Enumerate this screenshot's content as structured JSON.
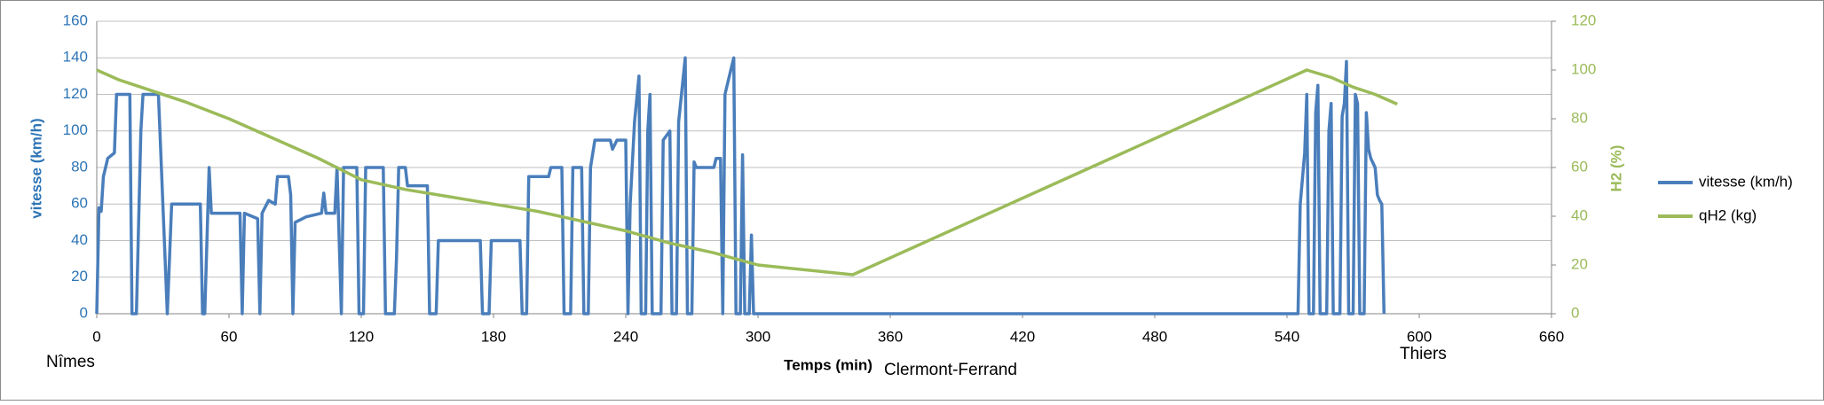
{
  "chart_data": {
    "type": "line",
    "xlabel": "Temps (min)",
    "ylabel": "vitesse (km/h)",
    "y2label": "H2 (%)",
    "annotations": [
      "Nîmes",
      "Clermont-Ferrand",
      "Thiers"
    ],
    "xlim": [
      0,
      660
    ],
    "xticks": [
      0,
      60,
      120,
      180,
      240,
      300,
      360,
      420,
      480,
      540,
      600,
      660
    ],
    "ylim": [
      0,
      160
    ],
    "yticks": [
      0,
      20,
      40,
      60,
      80,
      100,
      120,
      140,
      160
    ],
    "y2lim": [
      0,
      120
    ],
    "y2ticks": [
      0,
      20,
      40,
      60,
      80,
      100,
      120
    ],
    "grid": true,
    "legend": "right",
    "series": [
      {
        "name": "vitesse (km/h)",
        "color": "#4a7ebb",
        "x": [
          0,
          1,
          2,
          3,
          5,
          8,
          9,
          15,
          16,
          18,
          20,
          21,
          28,
          30,
          32,
          34,
          47,
          48,
          49,
          51,
          52,
          65,
          66,
          67,
          73,
          74,
          75,
          78,
          81,
          82,
          87,
          88,
          89,
          90,
          95,
          102,
          103,
          104,
          108,
          109,
          111,
          112,
          118,
          119,
          121,
          122,
          130,
          131,
          135,
          136,
          137,
          140,
          141,
          150,
          151,
          154,
          155,
          174,
          175,
          178,
          179,
          192,
          193,
          195,
          196,
          205,
          206,
          211,
          212,
          215,
          216,
          220,
          221,
          223,
          224,
          226,
          233,
          234,
          236,
          240,
          241,
          242,
          244,
          246,
          247,
          249,
          250,
          251,
          252,
          256,
          257,
          260,
          261,
          263,
          264,
          267,
          268,
          270,
          271,
          272,
          280,
          281,
          283,
          284,
          285,
          287,
          289,
          290,
          292,
          293,
          294,
          296,
          297,
          298,
          545,
          546,
          548,
          549,
          550,
          552,
          553,
          554,
          555,
          558,
          559,
          560,
          561,
          564,
          565,
          566,
          567,
          568,
          570,
          571,
          572,
          573,
          575,
          576,
          577,
          578,
          580,
          581,
          582,
          583,
          584
        ],
        "values": [
          0,
          58,
          56,
          75,
          85,
          88,
          120,
          120,
          0,
          0,
          100,
          120,
          120,
          60,
          0,
          60,
          60,
          0,
          0,
          80,
          55,
          55,
          0,
          55,
          52,
          0,
          55,
          62,
          60,
          75,
          75,
          65,
          0,
          50,
          53,
          55,
          66,
          55,
          55,
          80,
          0,
          80,
          80,
          0,
          0,
          80,
          80,
          0,
          0,
          30,
          80,
          80,
          70,
          70,
          0,
          0,
          40,
          40,
          0,
          0,
          40,
          40,
          0,
          0,
          75,
          75,
          80,
          80,
          0,
          0,
          80,
          80,
          0,
          0,
          80,
          95,
          95,
          90,
          95,
          95,
          0,
          60,
          105,
          130,
          0,
          0,
          100,
          120,
          0,
          0,
          95,
          100,
          0,
          0,
          105,
          140,
          0,
          0,
          83,
          80,
          80,
          85,
          85,
          0,
          120,
          130,
          140,
          0,
          0,
          87,
          0,
          0,
          43,
          0,
          0,
          60,
          88,
          120,
          0,
          0,
          110,
          125,
          0,
          0,
          100,
          115,
          0,
          0,
          108,
          115,
          138,
          0,
          0,
          120,
          115,
          0,
          0,
          110,
          90,
          85,
          80,
          65,
          62,
          60,
          0
        ]
      },
      {
        "name": "qH2 (kg)",
        "color": "#9bbb59",
        "axis": "y2",
        "x": [
          0,
          10,
          20,
          40,
          60,
          80,
          100,
          120,
          140,
          160,
          180,
          200,
          220,
          240,
          260,
          280,
          300,
          343,
          549,
          560,
          570,
          580,
          590
        ],
        "values": [
          100,
          96,
          93,
          87,
          80,
          72,
          64,
          55,
          51,
          48,
          45,
          42,
          38,
          34,
          29,
          25,
          20,
          16,
          100,
          97,
          93,
          90,
          86
        ]
      }
    ]
  }
}
